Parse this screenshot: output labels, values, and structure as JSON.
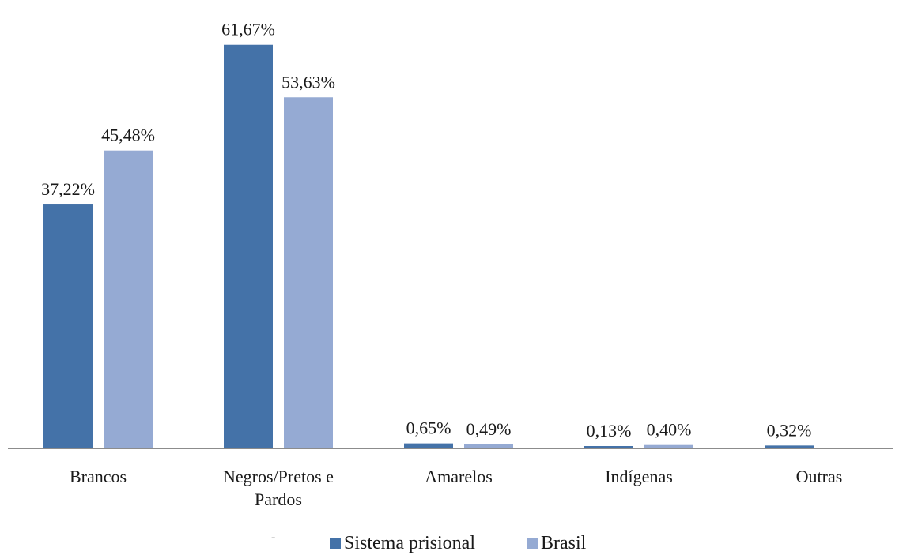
{
  "chart_data": {
    "type": "bar",
    "categories": [
      "Brancos",
      "Negros/Pretos e Pardos",
      "Amarelos",
      "Indígenas",
      "Outras"
    ],
    "category_lines": [
      [
        "Brancos"
      ],
      [
        "Negros/Pretos e",
        "Pardos"
      ],
      [
        "Amarelos"
      ],
      [
        "Indígenas"
      ],
      [
        "Outras"
      ]
    ],
    "series": [
      {
        "name": "Sistema prisional",
        "color": "#4472a8",
        "values": [
          37.22,
          61.67,
          0.65,
          0.13,
          0.32
        ],
        "labels": [
          "37,22%",
          "61,67%",
          "0,65%",
          "0,13%",
          "0,32%"
        ]
      },
      {
        "name": "Brasil",
        "color": "#95aad3",
        "values": [
          45.48,
          53.63,
          0.49,
          0.4,
          null
        ],
        "labels": [
          "45,48%",
          "53,63%",
          "0,49%",
          "0,40%",
          null
        ]
      }
    ],
    "ylim": [
      0,
      62
    ],
    "grid": false,
    "legend_position": "bottom-center",
    "stray_mark": "-"
  }
}
